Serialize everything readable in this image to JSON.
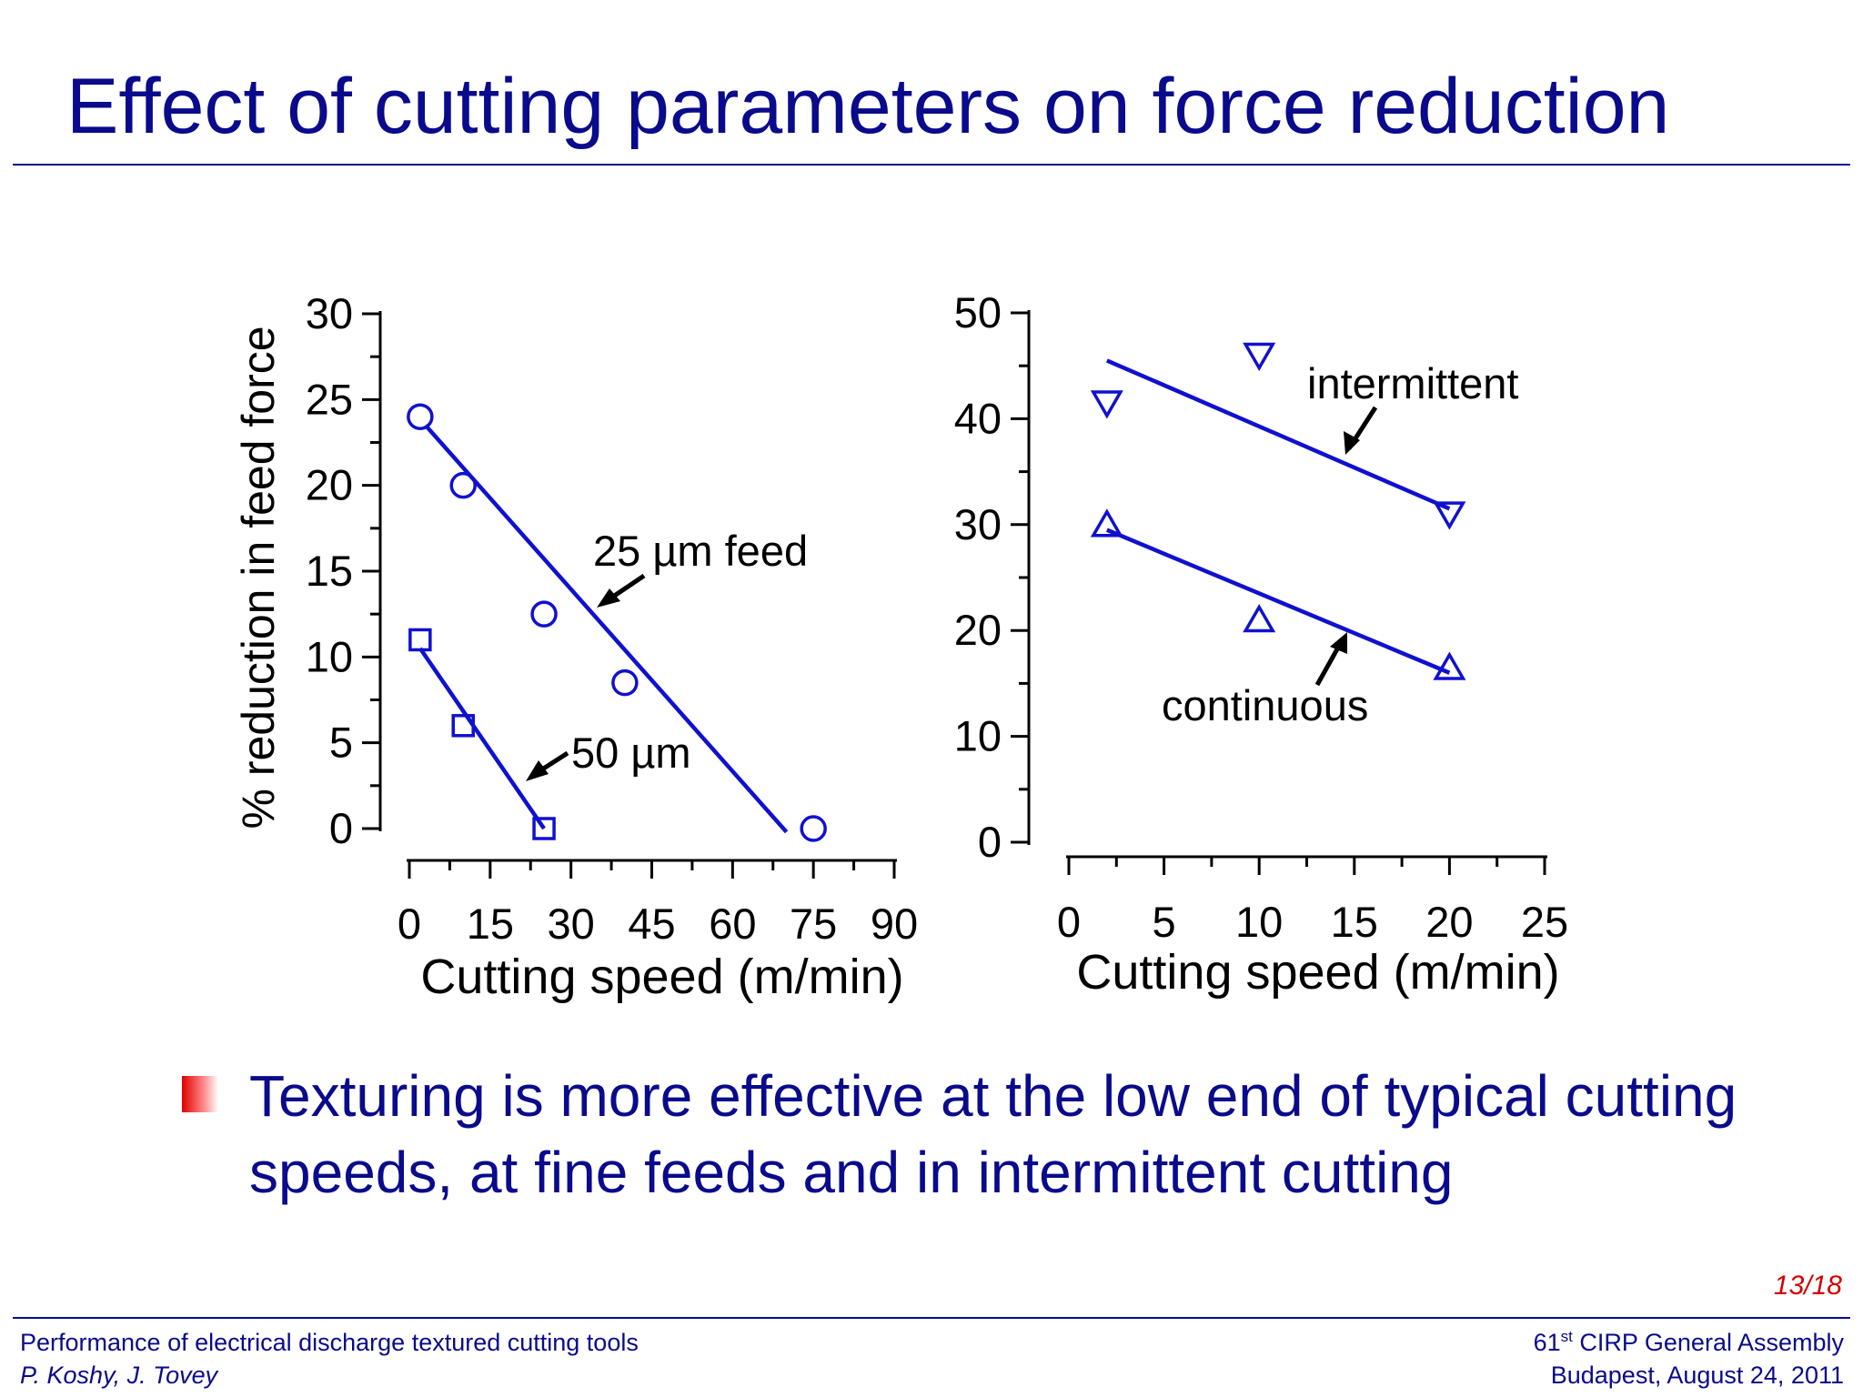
{
  "slide": {
    "title": "Effect of cutting parameters on force reduction",
    "bullet": "Texturing is more effective at the low end of typical cutting speeds, at fine feeds and in intermittent cutting",
    "slide_number": "13/18",
    "footer": {
      "left_line1": "Performance of electrical discharge textured cutting tools",
      "left_line2": "P. Koshy, J. Tovey",
      "right_line1_num": "61",
      "right_line1_sup": "st",
      "right_line1_rest": " CIRP General Assembly",
      "right_line2": "Budapest, August 24, 2011"
    },
    "colors": {
      "title": "#0a0a8c",
      "series": "#1010d0",
      "slide_number": "#d40000",
      "bullet": "#e00000"
    }
  },
  "chart_data": [
    {
      "type": "scatter",
      "title": "",
      "xlabel": "Cutting speed (m/min)",
      "ylabel": "% reduction in feed force",
      "xlim": [
        0,
        90
      ],
      "ylim": [
        0,
        30
      ],
      "xticks": [
        0,
        15,
        30,
        45,
        60,
        75,
        90
      ],
      "yticks": [
        0,
        5,
        10,
        15,
        20,
        25,
        30
      ],
      "series": [
        {
          "name": "25 µm feed",
          "marker": "circle",
          "points": [
            [
              2,
              24
            ],
            [
              10,
              20
            ],
            [
              25,
              12.5
            ],
            [
              40,
              8.5
            ],
            [
              75,
              0
            ]
          ],
          "fit_line": [
            [
              3,
              23.5
            ],
            [
              70,
              -0.2
            ]
          ]
        },
        {
          "name": "50 µm",
          "marker": "square",
          "points": [
            [
              2,
              11
            ],
            [
              10,
              6
            ],
            [
              25,
              0
            ]
          ],
          "fit_line": [
            [
              2,
              10.5
            ],
            [
              25,
              0
            ]
          ]
        }
      ]
    },
    {
      "type": "scatter",
      "title": "",
      "xlabel": "Cutting speed (m/min)",
      "ylabel": "",
      "xlim": [
        0,
        25
      ],
      "ylim": [
        0,
        50
      ],
      "xticks": [
        0,
        5,
        10,
        15,
        20,
        25
      ],
      "yticks": [
        0,
        10,
        20,
        30,
        40,
        50
      ],
      "series": [
        {
          "name": "intermittent",
          "marker": "triangle-down",
          "points": [
            [
              2,
              41.5
            ],
            [
              10,
              46
            ],
            [
              20,
              31
            ]
          ],
          "fit_line": [
            [
              2,
              45.5
            ],
            [
              20,
              31.5
            ]
          ]
        },
        {
          "name": "continuous",
          "marker": "triangle-up",
          "points": [
            [
              2,
              30
            ],
            [
              10,
              21
            ],
            [
              20,
              16.5
            ]
          ],
          "fit_line": [
            [
              2,
              29.5
            ],
            [
              20,
              16
            ]
          ]
        }
      ]
    }
  ]
}
